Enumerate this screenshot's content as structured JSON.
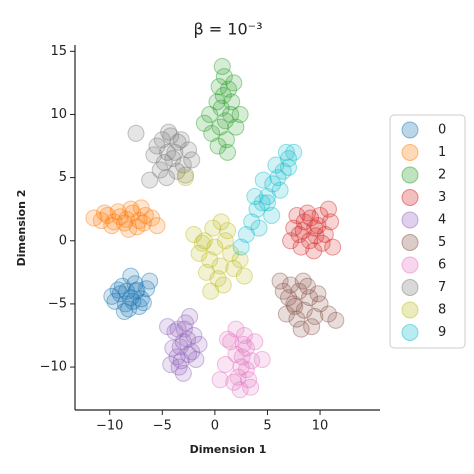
{
  "chart_data": {
    "type": "scatter",
    "title": "β = 10⁻³",
    "xlabel": "Dimension 1",
    "ylabel": "Dimension 2",
    "xlim": [
      -13.3,
      15.7
    ],
    "ylim": [
      -13.4,
      15.5
    ],
    "xticks": [
      {
        "value": -10,
        "label": "−10"
      },
      {
        "value": -5,
        "label": "−5"
      },
      0,
      5,
      10
    ],
    "yticks": [
      {
        "value": -10,
        "label": "−10"
      },
      {
        "value": -5,
        "label": "−5"
      },
      0,
      5,
      10,
      15
    ],
    "legend": "right",
    "series": [
      {
        "name": "0",
        "color": "#1f77b4",
        "x": [
          -9.5,
          -9,
          -8.5,
          -8,
          -7.5,
          -7,
          -6.5,
          -8.8,
          -8.2,
          -7.6,
          -7.2,
          -9.8,
          -6.2,
          -8.4,
          -7.8,
          -8.6,
          -7.4,
          -9.2,
          -6.8,
          -8
        ],
        "y": [
          -4.8,
          -4.2,
          -5,
          -4.5,
          -4,
          -4.6,
          -3.8,
          -3.6,
          -5.4,
          -3.4,
          -5.2,
          -4.4,
          -3.2,
          -4,
          -4.8,
          -5.6,
          -3.9,
          -3.9,
          -4.9,
          -2.8
        ]
      },
      {
        "name": "1",
        "color": "#ff7f0e",
        "x": [
          -11.5,
          -10.8,
          -10.2,
          -9.6,
          -9,
          -8.4,
          -7.8,
          -7.2,
          -6.6,
          -6,
          -9.8,
          -9.2,
          -8.6,
          -8,
          -7.4,
          -6.8,
          -10.5,
          -8.2,
          -7,
          -5.5
        ],
        "y": [
          1.8,
          1.6,
          2,
          1.5,
          1.9,
          1.7,
          2.2,
          1.6,
          2,
          1.8,
          1.2,
          2.3,
          1.4,
          2.5,
          1.1,
          1.4,
          2.2,
          0.9,
          2.6,
          1.2
        ]
      },
      {
        "name": "2",
        "color": "#2ca02c",
        "x": [
          0.5,
          1,
          1.5,
          0.2,
          0.8,
          1.3,
          -0.3,
          2,
          0.6,
          1.1,
          0.9,
          1.6,
          -0.5,
          0.3,
          1.8,
          0.7,
          1.2,
          2.4,
          -1,
          0.4
        ],
        "y": [
          9,
          9.5,
          10,
          11,
          11.5,
          12,
          8.5,
          9,
          10.5,
          8,
          13,
          11,
          10,
          7.5,
          12.5,
          13.8,
          7,
          10,
          9.3,
          12.2
        ]
      },
      {
        "name": "3",
        "color": "#d62728",
        "x": [
          7.5,
          8,
          8.5,
          9,
          9.5,
          10,
          10.5,
          11,
          8.2,
          8.8,
          9.4,
          10.2,
          7.8,
          9.6,
          10.8,
          8.4,
          9.1,
          7.2,
          11.2,
          9.8
        ],
        "y": [
          1,
          0.5,
          1.5,
          0,
          1,
          2,
          0.5,
          1.5,
          -0.5,
          2.2,
          -0.8,
          -0.2,
          2,
          0.4,
          2.5,
          0.8,
          1.8,
          0,
          -0.5,
          1.2
        ]
      },
      {
        "name": "4",
        "color": "#9467bd",
        "x": [
          -3.5,
          -3,
          -2.5,
          -4,
          -2,
          -3.2,
          -2.8,
          -3.8,
          -2.2,
          -3.4,
          -1.5,
          -4.5,
          -3,
          -2.6,
          -3.6,
          -2.4,
          -4.2,
          -1.8,
          -3.3,
          -2.9
        ],
        "y": [
          -7,
          -8,
          -9,
          -8.5,
          -7.5,
          -9.5,
          -6.5,
          -7.2,
          -8.8,
          -10,
          -8.2,
          -6.8,
          -10.5,
          -7.8,
          -9.2,
          -6,
          -9.8,
          -9.4,
          -8.4,
          -7
        ]
      },
      {
        "name": "5",
        "color": "#8c564b",
        "x": [
          6.5,
          7,
          7.5,
          8,
          8.5,
          9,
          9.5,
          10,
          7.2,
          7.8,
          8.4,
          9.2,
          6.8,
          8.8,
          9.8,
          7.6,
          8.2,
          10.8,
          11.5,
          6.2
        ],
        "y": [
          -4,
          -4.5,
          -5,
          -4,
          -5.5,
          -4.5,
          -6,
          -5,
          -3.5,
          -6.2,
          -3.2,
          -6.8,
          -5.8,
          -3.6,
          -4.2,
          -5.2,
          -7,
          -5.8,
          -6.3,
          -3.2
        ]
      },
      {
        "name": "6",
        "color": "#e377c2",
        "x": [
          1.5,
          2,
          2.5,
          3,
          3.5,
          2.2,
          2.8,
          1.8,
          3.2,
          2.6,
          1,
          3.8,
          2.4,
          2,
          3,
          1.2,
          2.7,
          4.5,
          0.5,
          3.4
        ],
        "y": [
          -8,
          -9,
          -10,
          -8.5,
          -9.5,
          -10.8,
          -7.5,
          -11.2,
          -11,
          -9.2,
          -9.8,
          -8,
          -11.8,
          -7,
          -10.2,
          -7.8,
          -8.2,
          -9.4,
          -11,
          -11.6
        ]
      },
      {
        "name": "7",
        "color": "#7f7f7f",
        "x": [
          -5.5,
          -5,
          -4.5,
          -4,
          -3.5,
          -3,
          -2.5,
          -4.8,
          -4.2,
          -3.6,
          -3.2,
          -5.8,
          -2.8,
          -4.6,
          -3.8,
          -5.2,
          -2.2,
          -6.2,
          -7.5,
          -4.4
        ],
        "y": [
          7.5,
          8,
          7,
          6.5,
          7.8,
          6,
          7.2,
          6.2,
          8.3,
          5.5,
          8,
          6.8,
          5.2,
          5,
          7,
          5.6,
          6.4,
          4.8,
          8.5,
          8.6
        ]
      },
      {
        "name": "8",
        "color": "#bcbd22",
        "x": [
          -1.5,
          -1,
          -0.5,
          0,
          0.5,
          1,
          1.5,
          -0.8,
          0.3,
          -0.2,
          0.8,
          1.8,
          -2,
          -1.2,
          0.6,
          2.4,
          -0.4,
          1.2,
          2.8,
          -2.8
        ],
        "y": [
          -1,
          0,
          -1.5,
          -0.5,
          -2,
          0,
          -1,
          -2.5,
          -3,
          1,
          -3.5,
          -2.2,
          0.5,
          -0.2,
          1.5,
          -1.5,
          -4,
          0.8,
          -2.8,
          5
        ]
      },
      {
        "name": "9",
        "color": "#17becf",
        "x": [
          3,
          3.5,
          4,
          4.5,
          5,
          5.5,
          6,
          6.5,
          7,
          7.5,
          3.8,
          4.6,
          5.4,
          6.2,
          7,
          2.5,
          4.2,
          5.8,
          6.8,
          5
        ],
        "y": [
          0.5,
          1.5,
          2.5,
          3,
          3.5,
          4.5,
          5,
          5.5,
          6.5,
          7,
          3.5,
          4.8,
          2,
          4,
          5.8,
          -0.5,
          1,
          6,
          7,
          3
        ]
      }
    ]
  }
}
